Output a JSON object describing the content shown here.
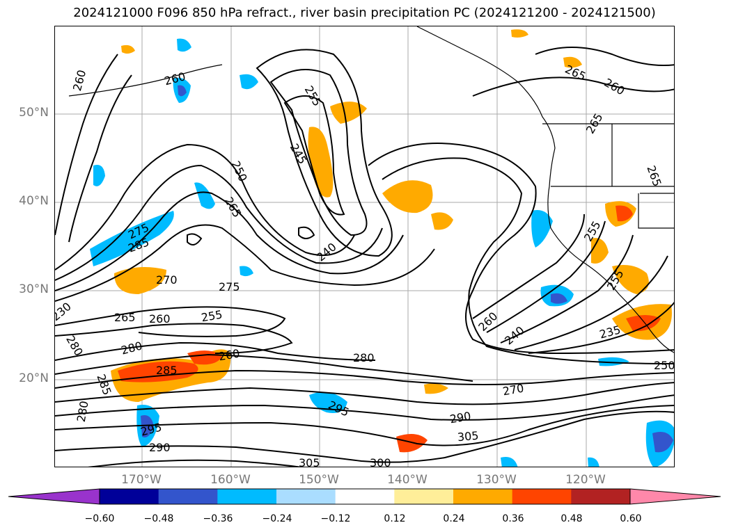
{
  "title": "2024121000 F096 850 hPa refract., river basin precipitation PC (2024121200 - 2024121500)",
  "latitude_labels": [
    "50°N",
    "40°N",
    "30°N",
    "20°N"
  ],
  "longitude_labels": [
    "170°W",
    "160°W",
    "150°W",
    "140°W",
    "130°W",
    "120°W"
  ],
  "colorbar": {
    "colors": [
      "#9933cc",
      "#000099",
      "#3355cc",
      "#00bbff",
      "#aaddff",
      "#ffffff",
      "#ffee99",
      "#ffaa00",
      "#ff4400",
      "#b22222",
      "#ff88aa"
    ],
    "tick_labels": [
      "−0.60",
      "−0.48",
      "−0.36",
      "−0.24",
      "−0.12",
      "0.12",
      "0.24",
      "0.36",
      "0.48",
      "0.60"
    ]
  },
  "contour_labels": [
    {
      "text": "260"
    },
    {
      "text": "260"
    },
    {
      "text": "255"
    },
    {
      "text": "245"
    },
    {
      "text": "250"
    },
    {
      "text": "265"
    },
    {
      "text": "275"
    },
    {
      "text": "285"
    },
    {
      "text": "240"
    },
    {
      "text": "270"
    },
    {
      "text": "275"
    },
    {
      "text": "265"
    },
    {
      "text": "260"
    },
    {
      "text": "255"
    },
    {
      "text": "280"
    },
    {
      "text": "280"
    },
    {
      "text": "285"
    },
    {
      "text": "260"
    },
    {
      "text": "285"
    },
    {
      "text": "280"
    },
    {
      "text": "295"
    },
    {
      "text": "290"
    },
    {
      "text": "305"
    },
    {
      "text": "300"
    },
    {
      "text": "280"
    },
    {
      "text": "295"
    },
    {
      "text": "260"
    },
    {
      "text": "240"
    },
    {
      "text": "270"
    },
    {
      "text": "290"
    },
    {
      "text": "305"
    },
    {
      "text": "265"
    },
    {
      "text": "260"
    },
    {
      "text": "265"
    },
    {
      "text": "265"
    },
    {
      "text": "255"
    },
    {
      "text": "255"
    },
    {
      "text": "235"
    },
    {
      "text": "250"
    },
    {
      "text": "230"
    }
  ]
}
